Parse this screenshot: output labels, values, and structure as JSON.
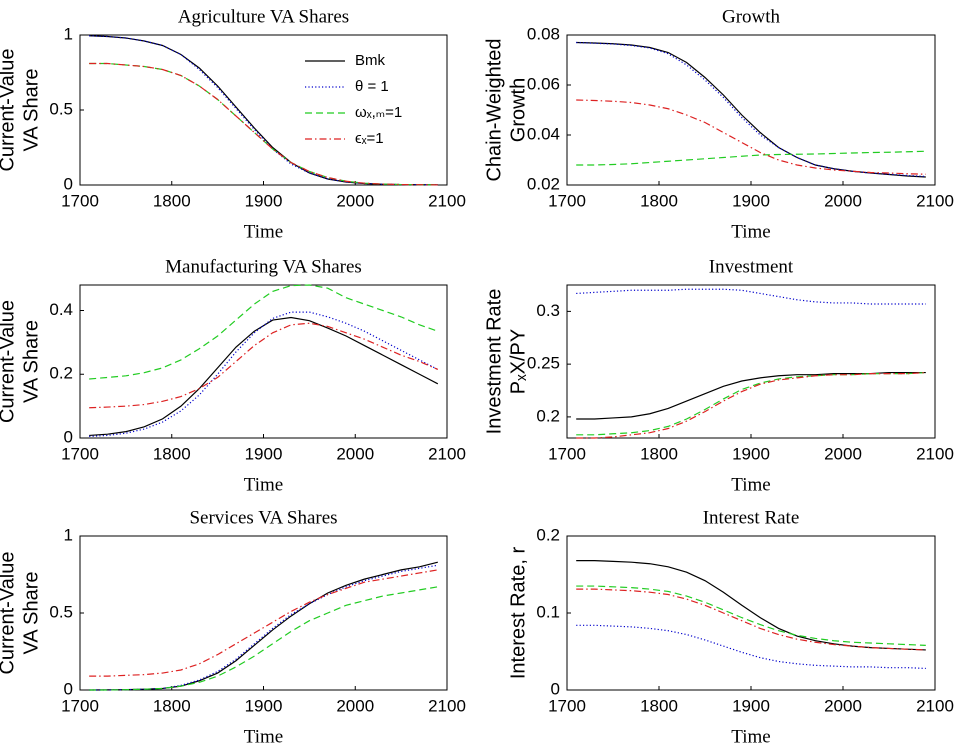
{
  "chart_data": [
    {
      "type": "line",
      "title": "Agriculture VA Shares",
      "xlabel": "Time",
      "ylabel": [
        "Current-Value",
        "VA Share"
      ],
      "x": [
        1710,
        1730,
        1750,
        1770,
        1790,
        1810,
        1830,
        1850,
        1870,
        1890,
        1910,
        1930,
        1950,
        1970,
        1990,
        2010,
        2030,
        2050,
        2070,
        2090
      ],
      "xlim": [
        1700,
        2100
      ],
      "xticks": [
        1700,
        1800,
        1900,
        2000,
        2100
      ],
      "ylim": [
        0,
        1
      ],
      "yticks": [
        0,
        0.5,
        1
      ],
      "legend": "northeast",
      "series": [
        {
          "name": "Bmk",
          "color": "#000000",
          "linestyle": "solid",
          "values": [
            0.995,
            0.99,
            0.98,
            0.96,
            0.93,
            0.87,
            0.78,
            0.66,
            0.52,
            0.38,
            0.25,
            0.15,
            0.08,
            0.04,
            0.02,
            0.01,
            0.005,
            0.003,
            0.002,
            0.001
          ]
        },
        {
          "name": "θ = 1",
          "color": "#0000cc",
          "linestyle": "dotted",
          "values": [
            0.995,
            0.99,
            0.98,
            0.96,
            0.93,
            0.87,
            0.77,
            0.65,
            0.51,
            0.37,
            0.24,
            0.14,
            0.08,
            0.04,
            0.02,
            0.01,
            0.005,
            0.003,
            0.002,
            0.001
          ]
        },
        {
          "name": "ωₓ,ₘ=1",
          "color": "#22cc22",
          "linestyle": "dashed",
          "values": [
            0.81,
            0.81,
            0.8,
            0.79,
            0.77,
            0.73,
            0.66,
            0.57,
            0.46,
            0.35,
            0.24,
            0.15,
            0.09,
            0.05,
            0.025,
            0.012,
            0.006,
            0.003,
            0.002,
            0.001
          ]
        },
        {
          "name": "ϵₓ=1",
          "color": "#dd2222",
          "linestyle": "dashdot",
          "values": [
            0.81,
            0.81,
            0.8,
            0.79,
            0.77,
            0.73,
            0.66,
            0.57,
            0.46,
            0.35,
            0.24,
            0.15,
            0.09,
            0.05,
            0.025,
            0.012,
            0.006,
            0.003,
            0.002,
            0.001
          ]
        }
      ]
    },
    {
      "type": "line",
      "title": "Growth",
      "xlabel": "Time",
      "ylabel": [
        "Chain-Weighted",
        "Growth"
      ],
      "x": [
        1710,
        1730,
        1750,
        1770,
        1790,
        1810,
        1830,
        1850,
        1870,
        1890,
        1910,
        1930,
        1950,
        1970,
        1990,
        2010,
        2030,
        2050,
        2070,
        2090
      ],
      "xlim": [
        1700,
        2100
      ],
      "xticks": [
        1700,
        1800,
        1900,
        2000,
        2100
      ],
      "ylim": [
        0.02,
        0.08
      ],
      "yticks": [
        0.02,
        0.04,
        0.06,
        0.08
      ],
      "series": [
        {
          "color": "#000000",
          "linestyle": "solid",
          "values": [
            0.077,
            0.0768,
            0.0765,
            0.076,
            0.075,
            0.073,
            0.069,
            0.063,
            0.056,
            0.048,
            0.041,
            0.035,
            0.031,
            0.028,
            0.0265,
            0.0255,
            0.0248,
            0.0242,
            0.0236,
            0.0232
          ]
        },
        {
          "color": "#0000cc",
          "linestyle": "dotted",
          "values": [
            0.077,
            0.0767,
            0.0764,
            0.0758,
            0.0748,
            0.0725,
            0.068,
            0.062,
            0.055,
            0.047,
            0.04,
            0.035,
            0.031,
            0.028,
            0.0265,
            0.0255,
            0.0248,
            0.0243,
            0.0238,
            0.0234
          ]
        },
        {
          "color": "#22cc22",
          "linestyle": "dashed",
          "values": [
            0.028,
            0.028,
            0.0282,
            0.0285,
            0.029,
            0.0295,
            0.03,
            0.0305,
            0.031,
            0.0315,
            0.032,
            0.0322,
            0.0323,
            0.0324,
            0.0326,
            0.0328,
            0.033,
            0.0331,
            0.0333,
            0.0335
          ]
        },
        {
          "color": "#dd2222",
          "linestyle": "dashdot",
          "values": [
            0.054,
            0.0538,
            0.0535,
            0.053,
            0.052,
            0.0505,
            0.048,
            0.045,
            0.041,
            0.037,
            0.033,
            0.03,
            0.028,
            0.0268,
            0.026,
            0.0255,
            0.025,
            0.0248,
            0.0245,
            0.0243
          ]
        }
      ]
    },
    {
      "type": "line",
      "title": "Manufacturing VA Shares",
      "xlabel": "Time",
      "ylabel": [
        "Current-Value",
        "VA Share"
      ],
      "x": [
        1710,
        1730,
        1750,
        1770,
        1790,
        1810,
        1830,
        1850,
        1870,
        1890,
        1910,
        1930,
        1950,
        1970,
        1990,
        2010,
        2030,
        2050,
        2070,
        2090
      ],
      "xlim": [
        1700,
        2100
      ],
      "xticks": [
        1700,
        1800,
        1900,
        2000,
        2100
      ],
      "ylim": [
        0,
        0.48
      ],
      "yticks": [
        0,
        0.2,
        0.4
      ],
      "series": [
        {
          "color": "#000000",
          "linestyle": "solid",
          "values": [
            0.008,
            0.012,
            0.02,
            0.035,
            0.06,
            0.1,
            0.155,
            0.22,
            0.285,
            0.335,
            0.37,
            0.378,
            0.368,
            0.345,
            0.32,
            0.29,
            0.26,
            0.23,
            0.2,
            0.17
          ]
        },
        {
          "color": "#0000cc",
          "linestyle": "dotted",
          "values": [
            0.005,
            0.008,
            0.015,
            0.028,
            0.05,
            0.085,
            0.135,
            0.2,
            0.27,
            0.33,
            0.375,
            0.395,
            0.395,
            0.38,
            0.36,
            0.335,
            0.305,
            0.275,
            0.245,
            0.215
          ]
        },
        {
          "color": "#22cc22",
          "linestyle": "dashed",
          "values": [
            0.185,
            0.19,
            0.195,
            0.205,
            0.22,
            0.245,
            0.28,
            0.32,
            0.37,
            0.42,
            0.46,
            0.478,
            0.48,
            0.47,
            0.44,
            0.42,
            0.4,
            0.38,
            0.355,
            0.335
          ]
        },
        {
          "color": "#dd2222",
          "linestyle": "dashdot",
          "values": [
            0.095,
            0.097,
            0.1,
            0.105,
            0.115,
            0.13,
            0.155,
            0.19,
            0.24,
            0.29,
            0.33,
            0.355,
            0.36,
            0.35,
            0.33,
            0.31,
            0.285,
            0.26,
            0.24,
            0.215
          ]
        }
      ]
    },
    {
      "type": "line",
      "title": "Investment",
      "xlabel": "Time",
      "ylabel": [
        "Investment Rate",
        "PₓX/PY"
      ],
      "x": [
        1710,
        1730,
        1750,
        1770,
        1790,
        1810,
        1830,
        1850,
        1870,
        1890,
        1910,
        1930,
        1950,
        1970,
        1990,
        2010,
        2030,
        2050,
        2070,
        2090
      ],
      "xlim": [
        1700,
        2100
      ],
      "xticks": [
        1700,
        1800,
        1900,
        2000,
        2100
      ],
      "ylim": [
        0.18,
        0.325
      ],
      "yticks": [
        0.2,
        0.25,
        0.3
      ],
      "series": [
        {
          "color": "#000000",
          "linestyle": "solid",
          "values": [
            0.198,
            0.198,
            0.199,
            0.2,
            0.203,
            0.208,
            0.215,
            0.222,
            0.229,
            0.234,
            0.237,
            0.239,
            0.24,
            0.24,
            0.241,
            0.241,
            0.241,
            0.242,
            0.242,
            0.242
          ]
        },
        {
          "color": "#0000cc",
          "linestyle": "dotted",
          "values": [
            0.317,
            0.318,
            0.319,
            0.32,
            0.32,
            0.32,
            0.321,
            0.321,
            0.321,
            0.32,
            0.317,
            0.314,
            0.311,
            0.309,
            0.308,
            0.308,
            0.307,
            0.307,
            0.307,
            0.307
          ]
        },
        {
          "color": "#22cc22",
          "linestyle": "dashed",
          "values": [
            0.183,
            0.183,
            0.184,
            0.185,
            0.187,
            0.191,
            0.198,
            0.207,
            0.217,
            0.226,
            0.232,
            0.236,
            0.238,
            0.239,
            0.24,
            0.24,
            0.241,
            0.241,
            0.241,
            0.242
          ]
        },
        {
          "color": "#dd2222",
          "linestyle": "dashdot",
          "values": [
            0.18,
            0.18,
            0.181,
            0.183,
            0.185,
            0.189,
            0.196,
            0.205,
            0.215,
            0.224,
            0.231,
            0.235,
            0.237,
            0.239,
            0.24,
            0.24,
            0.241,
            0.241,
            0.241,
            0.242
          ]
        }
      ]
    },
    {
      "type": "line",
      "title": "Services VA Shares",
      "xlabel": "Time",
      "ylabel": [
        "Current-Value",
        "VA Share"
      ],
      "x": [
        1710,
        1730,
        1750,
        1770,
        1790,
        1810,
        1830,
        1850,
        1870,
        1890,
        1910,
        1930,
        1950,
        1970,
        1990,
        2010,
        2030,
        2050,
        2070,
        2090
      ],
      "xlim": [
        1700,
        2100
      ],
      "xticks": [
        1700,
        1800,
        1900,
        2000,
        2100
      ],
      "ylim": [
        0,
        1
      ],
      "yticks": [
        0,
        0.5,
        1
      ],
      "series": [
        {
          "color": "#000000",
          "linestyle": "solid",
          "values": [
            0,
            0.001,
            0.002,
            0.005,
            0.01,
            0.025,
            0.06,
            0.11,
            0.19,
            0.29,
            0.39,
            0.48,
            0.56,
            0.63,
            0.68,
            0.72,
            0.75,
            0.78,
            0.8,
            0.83
          ]
        },
        {
          "color": "#0000cc",
          "linestyle": "dotted",
          "values": [
            0,
            0,
            0.002,
            0.005,
            0.01,
            0.03,
            0.065,
            0.12,
            0.2,
            0.3,
            0.4,
            0.49,
            0.56,
            0.62,
            0.67,
            0.71,
            0.74,
            0.77,
            0.79,
            0.81
          ]
        },
        {
          "color": "#22cc22",
          "linestyle": "dashed",
          "values": [
            0,
            0,
            0.002,
            0.005,
            0.01,
            0.025,
            0.05,
            0.09,
            0.15,
            0.22,
            0.3,
            0.38,
            0.45,
            0.5,
            0.55,
            0.58,
            0.61,
            0.63,
            0.65,
            0.67
          ]
        },
        {
          "color": "#dd2222",
          "linestyle": "dashdot",
          "values": [
            0.09,
            0.09,
            0.095,
            0.1,
            0.11,
            0.13,
            0.17,
            0.23,
            0.3,
            0.37,
            0.44,
            0.51,
            0.57,
            0.62,
            0.66,
            0.7,
            0.72,
            0.74,
            0.76,
            0.78
          ]
        }
      ]
    },
    {
      "type": "line",
      "title": "Interest Rate",
      "xlabel": "Time",
      "ylabel": [
        "Interest Rate, r"
      ],
      "x": [
        1710,
        1730,
        1750,
        1770,
        1790,
        1810,
        1830,
        1850,
        1870,
        1890,
        1910,
        1930,
        1950,
        1970,
        1990,
        2010,
        2030,
        2050,
        2070,
        2090
      ],
      "xlim": [
        1700,
        2100
      ],
      "xticks": [
        1700,
        1800,
        1900,
        2000,
        2100
      ],
      "ylim": [
        0,
        0.2
      ],
      "yticks": [
        0,
        0.1,
        0.2
      ],
      "series": [
        {
          "color": "#000000",
          "linestyle": "solid",
          "values": [
            0.168,
            0.168,
            0.167,
            0.166,
            0.164,
            0.16,
            0.153,
            0.142,
            0.127,
            0.11,
            0.094,
            0.08,
            0.07,
            0.064,
            0.06,
            0.057,
            0.055,
            0.054,
            0.053,
            0.052
          ]
        },
        {
          "color": "#0000cc",
          "linestyle": "dotted",
          "values": [
            0.084,
            0.084,
            0.083,
            0.082,
            0.08,
            0.077,
            0.072,
            0.065,
            0.057,
            0.049,
            0.042,
            0.037,
            0.034,
            0.032,
            0.031,
            0.03,
            0.03,
            0.029,
            0.029,
            0.028
          ]
        },
        {
          "color": "#22cc22",
          "linestyle": "dashed",
          "values": [
            0.135,
            0.135,
            0.134,
            0.133,
            0.131,
            0.128,
            0.122,
            0.114,
            0.104,
            0.094,
            0.085,
            0.077,
            0.071,
            0.067,
            0.064,
            0.062,
            0.061,
            0.06,
            0.059,
            0.058
          ]
        },
        {
          "color": "#dd2222",
          "linestyle": "dashdot",
          "values": [
            0.131,
            0.131,
            0.13,
            0.129,
            0.127,
            0.124,
            0.118,
            0.11,
            0.1,
            0.09,
            0.08,
            0.072,
            0.066,
            0.062,
            0.059,
            0.057,
            0.055,
            0.054,
            0.053,
            0.052
          ]
        }
      ]
    }
  ]
}
